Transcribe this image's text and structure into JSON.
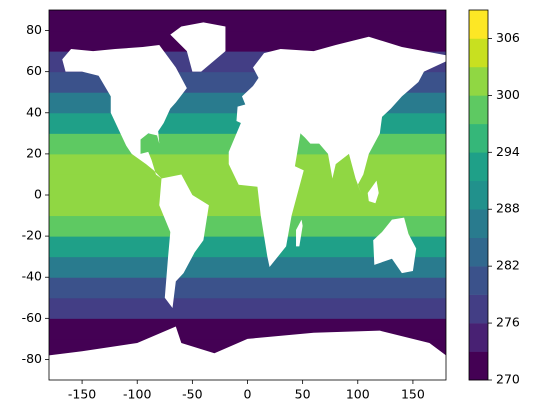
{
  "chart_data": {
    "type": "contourf",
    "lat_edges": [
      -90,
      -80,
      -70,
      -60,
      -50,
      -40,
      -30,
      -20,
      -10,
      0,
      10,
      20,
      30,
      40,
      50,
      60,
      70,
      80,
      90
    ],
    "values": [
      271,
      271,
      272,
      276,
      281,
      287,
      293,
      297,
      300,
      301,
      300,
      297,
      292,
      285,
      280,
      276,
      272,
      271
    ],
    "levels": [
      270,
      273,
      276,
      279,
      282,
      285,
      288,
      291,
      294,
      297,
      300,
      303,
      306,
      309
    ],
    "colors": [
      "#440154",
      "#482173",
      "#433e85",
      "#3b528b",
      "#31688e",
      "#297b8e",
      "#21918c",
      "#1fa088",
      "#35b779",
      "#5ec962",
      "#90d743",
      "#c8e020",
      "#fde725"
    ],
    "xlim": [
      -180,
      180
    ],
    "ylim": [
      -90,
      90
    ],
    "xticks": [
      -150,
      -100,
      -50,
      0,
      50,
      100,
      150
    ],
    "yticks": [
      -80,
      -60,
      -40,
      -20,
      0,
      20,
      40,
      60,
      80
    ],
    "cbar_ticks": [
      270,
      276,
      282,
      288,
      294,
      300,
      306
    ]
  }
}
